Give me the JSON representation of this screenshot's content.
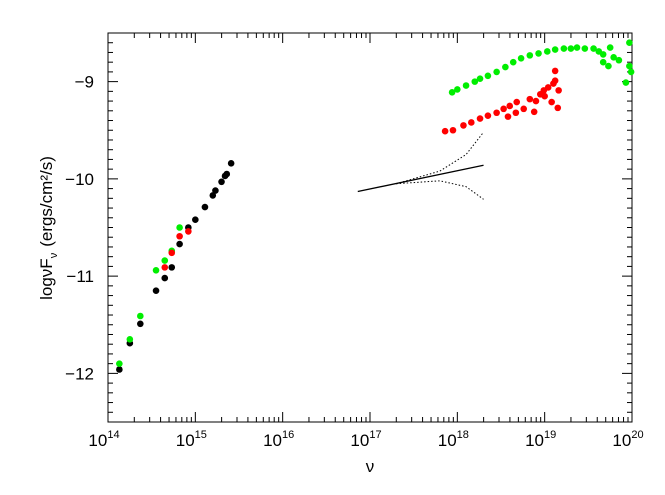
{
  "chart_data": {
    "type": "scatter",
    "title": "",
    "xlabel": "ν",
    "ylabel": "logνF",
    "ylabel_sub": "ν",
    "ylabel_units": "(ergs/cm²/s)",
    "x_scale": "log",
    "xlim": [
      100000000000000.0,
      1e+20
    ],
    "ylim": [
      -12.5,
      -8.5
    ],
    "x_ticks": [
      {
        "exp": 14,
        "label": "10",
        "sup": "14"
      },
      {
        "exp": 15,
        "label": "10",
        "sup": "15"
      },
      {
        "exp": 16,
        "label": "10",
        "sup": "16"
      },
      {
        "exp": 17,
        "label": "10",
        "sup": "17"
      },
      {
        "exp": 18,
        "label": "10",
        "sup": "18"
      },
      {
        "exp": 19,
        "label": "10",
        "sup": "19"
      },
      {
        "exp": 20,
        "label": "10",
        "sup": "20"
      }
    ],
    "y_ticks": [
      {
        "value": -9,
        "label": "−9"
      },
      {
        "value": -10,
        "label": "−10"
      },
      {
        "value": -11,
        "label": "−11"
      },
      {
        "value": -12,
        "label": "−12"
      }
    ],
    "grid": false,
    "series": [
      {
        "color": "#000000",
        "points": [
          [
            14.13,
            -11.96
          ],
          [
            14.25,
            -11.69
          ],
          [
            14.37,
            -11.49
          ],
          [
            14.55,
            -11.15
          ],
          [
            14.65,
            -11.02
          ],
          [
            14.73,
            -10.91
          ],
          [
            14.82,
            -10.67
          ],
          [
            14.92,
            -10.5
          ],
          [
            15.0,
            -10.42
          ],
          [
            15.11,
            -10.29
          ],
          [
            15.2,
            -10.17
          ],
          [
            15.23,
            -10.12
          ],
          [
            15.3,
            -10.03
          ],
          [
            15.34,
            -9.97
          ],
          [
            15.36,
            -9.95
          ],
          [
            15.41,
            -9.84
          ]
        ]
      },
      {
        "color": "#00ee00",
        "points": [
          [
            14.13,
            -11.9
          ],
          [
            14.25,
            -11.65
          ],
          [
            14.37,
            -11.41
          ],
          [
            14.55,
            -10.94
          ],
          [
            14.65,
            -10.84
          ],
          [
            14.73,
            -10.74
          ],
          [
            14.82,
            -10.5
          ],
          [
            17.94,
            -9.11
          ],
          [
            18.0,
            -9.08
          ],
          [
            18.1,
            -9.04
          ],
          [
            18.2,
            -9.0
          ],
          [
            18.26,
            -8.97
          ],
          [
            18.35,
            -8.94
          ],
          [
            18.45,
            -8.9
          ],
          [
            18.55,
            -8.85
          ],
          [
            18.64,
            -8.8
          ],
          [
            18.73,
            -8.76
          ],
          [
            18.83,
            -8.73
          ],
          [
            18.93,
            -8.71
          ],
          [
            19.03,
            -8.69
          ],
          [
            19.12,
            -8.67
          ],
          [
            19.22,
            -8.66
          ],
          [
            19.3,
            -8.66
          ],
          [
            19.37,
            -8.65
          ],
          [
            19.46,
            -8.66
          ],
          [
            19.56,
            -8.66
          ],
          [
            19.62,
            -8.69
          ],
          [
            19.67,
            -8.72
          ],
          [
            19.75,
            -8.65
          ],
          [
            19.67,
            -8.8
          ],
          [
            19.73,
            -8.84
          ],
          [
            19.79,
            -8.75
          ],
          [
            19.85,
            -8.78
          ],
          [
            19.97,
            -8.6
          ],
          [
            19.97,
            -8.84
          ],
          [
            19.99,
            -8.9
          ],
          [
            19.93,
            -9.01
          ]
        ]
      },
      {
        "color": "#ff0000",
        "points": [
          [
            14.65,
            -10.91
          ],
          [
            14.73,
            -10.76
          ],
          [
            14.82,
            -10.59
          ],
          [
            14.92,
            -10.54
          ],
          [
            17.86,
            -9.51
          ],
          [
            17.95,
            -9.5
          ],
          [
            18.07,
            -9.45
          ],
          [
            18.16,
            -9.42
          ],
          [
            18.26,
            -9.38
          ],
          [
            18.35,
            -9.35
          ],
          [
            18.45,
            -9.32
          ],
          [
            18.53,
            -9.28
          ],
          [
            18.6,
            -9.25
          ],
          [
            18.68,
            -9.21
          ],
          [
            18.58,
            -9.36
          ],
          [
            18.67,
            -9.32
          ],
          [
            18.76,
            -9.28
          ],
          [
            18.83,
            -9.18
          ],
          [
            18.88,
            -9.31
          ],
          [
            18.95,
            -9.13
          ],
          [
            18.99,
            -9.09
          ],
          [
            19.04,
            -9.06
          ],
          [
            19.08,
            -9.21
          ],
          [
            19.12,
            -8.99
          ],
          [
            19.12,
            -8.89
          ],
          [
            19.16,
            -9.09
          ],
          [
            19.15,
            -9.27
          ],
          [
            19.1,
            -9.02
          ],
          [
            19.0,
            -9.15
          ],
          [
            18.9,
            -9.2
          ]
        ]
      }
    ],
    "powerlaw": {
      "line": [
        [
          16.86,
          -10.13
        ],
        [
          18.3,
          -9.86
        ]
      ],
      "upper": [
        [
          17.3,
          -10.05
        ],
        [
          17.8,
          -9.92
        ],
        [
          18.1,
          -9.75
        ],
        [
          18.3,
          -9.52
        ]
      ],
      "lower": [
        [
          17.3,
          -10.05
        ],
        [
          17.8,
          -10.02
        ],
        [
          18.1,
          -10.08
        ],
        [
          18.3,
          -10.21
        ]
      ]
    }
  }
}
